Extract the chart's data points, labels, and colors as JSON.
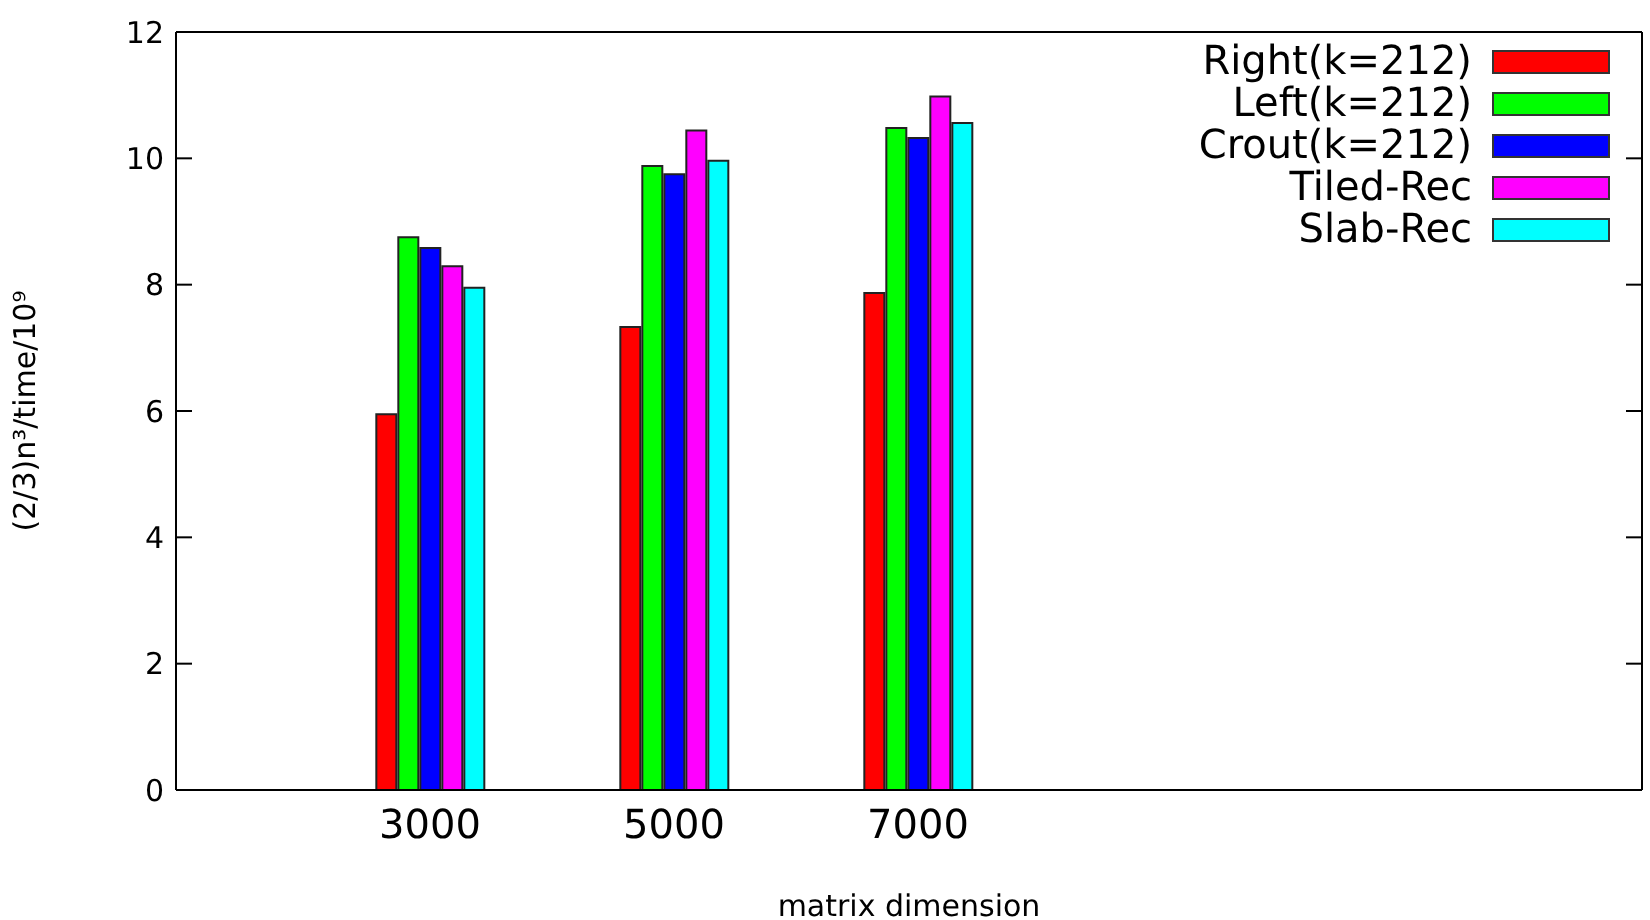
{
  "chart_data": {
    "type": "bar",
    "xlabel": "matrix dimension",
    "ylabel": "(2/3)n³/time/10⁹",
    "categories": [
      "3000",
      "5000",
      "7000"
    ],
    "series": [
      {
        "name": "Right(k=212)",
        "color": "#ff0000",
        "values": [
          5.95,
          7.33,
          7.87
        ]
      },
      {
        "name": "Left(k=212)",
        "color": "#00ff00",
        "values": [
          8.75,
          9.88,
          10.48
        ]
      },
      {
        "name": "Crout(k=212)",
        "color": "#0000ff",
        "values": [
          8.58,
          9.75,
          10.32
        ]
      },
      {
        "name": "Tiled-Rec",
        "color": "#ff00ff",
        "values": [
          8.29,
          10.44,
          10.98
        ]
      },
      {
        "name": "Slab-Rec",
        "color": "#00ffff",
        "values": [
          7.95,
          9.96,
          10.56
        ]
      }
    ],
    "ylim": [
      0,
      12
    ],
    "yticks": [
      0,
      2,
      4,
      6,
      8,
      10,
      12
    ],
    "legend": "top right"
  }
}
